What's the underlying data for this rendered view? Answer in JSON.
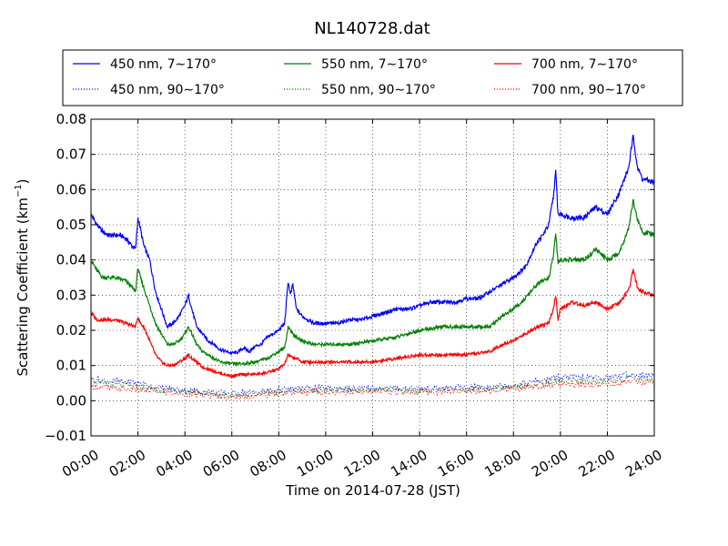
{
  "chart_data": {
    "type": "line",
    "title": "NL140728.dat",
    "xlabel": "Time on 2014-07-28 (JST)",
    "ylabel": "Scattering Coefficient (km",
    "ylabel_superscript": "−1",
    "ylabel_end": ")",
    "xlim": [
      0,
      24
    ],
    "ylim": [
      -0.01,
      0.08
    ],
    "x_ticks": [
      0,
      2,
      4,
      6,
      8,
      10,
      12,
      14,
      16,
      18,
      20,
      22,
      24
    ],
    "x_tick_labels": [
      "00:00",
      "02:00",
      "04:00",
      "06:00",
      "08:00",
      "10:00",
      "12:00",
      "14:00",
      "16:00",
      "18:00",
      "20:00",
      "22:00",
      "24:00"
    ],
    "y_ticks": [
      -0.01,
      0,
      0.01,
      0.02,
      0.03,
      0.04,
      0.05,
      0.06,
      0.07,
      0.08
    ],
    "y_tick_labels": [
      "−0.01",
      "0.00",
      "0.01",
      "0.02",
      "0.03",
      "0.04",
      "0.05",
      "0.06",
      "0.07",
      "0.08"
    ],
    "grid": true,
    "legend_position": "top (above plot)",
    "x_unit": "hours since 00:00 JST",
    "series": [
      {
        "name": "450 nm, 7∼170°",
        "color": "#0000ff",
        "style": "solid",
        "x": [
          0,
          0.25,
          0.5,
          0.75,
          1,
          1.25,
          1.5,
          1.75,
          1.9,
          2.0,
          2.1,
          2.25,
          2.5,
          2.75,
          3,
          3.25,
          3.5,
          3.75,
          4,
          4.15,
          4.3,
          4.5,
          4.75,
          5,
          5.25,
          5.5,
          5.75,
          6,
          6.25,
          6.5,
          6.75,
          7,
          7.25,
          7.5,
          7.75,
          8,
          8.25,
          8.4,
          8.5,
          8.6,
          8.75,
          9,
          9.5,
          10,
          10.5,
          11,
          11.5,
          12,
          12.5,
          13,
          13.5,
          14,
          14.5,
          15,
          15.5,
          16,
          16.5,
          17,
          17.5,
          18,
          18.5,
          19,
          19.25,
          19.5,
          19.7,
          19.8,
          19.9,
          20,
          20.5,
          21,
          21.5,
          22,
          22.5,
          22.9,
          23.1,
          23.3,
          23.5,
          24
        ],
        "y": [
          0.053,
          0.05,
          0.048,
          0.047,
          0.047,
          0.047,
          0.046,
          0.044,
          0.043,
          0.052,
          0.049,
          0.044,
          0.04,
          0.031,
          0.026,
          0.021,
          0.022,
          0.024,
          0.027,
          0.03,
          0.026,
          0.021,
          0.019,
          0.017,
          0.016,
          0.0145,
          0.014,
          0.0135,
          0.0138,
          0.015,
          0.014,
          0.0155,
          0.016,
          0.018,
          0.019,
          0.02,
          0.022,
          0.034,
          0.03,
          0.033,
          0.026,
          0.024,
          0.022,
          0.022,
          0.022,
          0.023,
          0.023,
          0.024,
          0.025,
          0.026,
          0.026,
          0.027,
          0.028,
          0.028,
          0.028,
          0.029,
          0.029,
          0.031,
          0.033,
          0.035,
          0.038,
          0.045,
          0.047,
          0.05,
          0.058,
          0.065,
          0.053,
          0.053,
          0.052,
          0.052,
          0.055,
          0.053,
          0.059,
          0.066,
          0.075,
          0.066,
          0.063,
          0.062
        ]
      },
      {
        "name": "550 nm, 7∼170°",
        "color": "#008000",
        "style": "solid",
        "x": [
          0,
          0.25,
          0.5,
          1,
          1.5,
          1.9,
          2.0,
          2.1,
          2.25,
          2.5,
          2.75,
          3,
          3.25,
          3.5,
          3.75,
          4,
          4.15,
          4.3,
          4.5,
          4.75,
          5,
          5.5,
          6,
          6.5,
          7,
          7.5,
          8,
          8.25,
          8.4,
          8.5,
          8.6,
          8.75,
          9,
          9.5,
          10,
          11,
          12,
          13,
          14,
          15,
          16,
          17,
          17.5,
          18,
          18.5,
          19,
          19.5,
          19.7,
          19.8,
          19.9,
          20,
          20.5,
          21,
          21.5,
          22,
          22.5,
          22.9,
          23.1,
          23.3,
          23.5,
          24
        ],
        "y": [
          0.04,
          0.037,
          0.035,
          0.035,
          0.034,
          0.031,
          0.038,
          0.035,
          0.032,
          0.027,
          0.022,
          0.019,
          0.016,
          0.016,
          0.017,
          0.019,
          0.021,
          0.019,
          0.016,
          0.014,
          0.013,
          0.011,
          0.0105,
          0.0105,
          0.011,
          0.012,
          0.014,
          0.015,
          0.021,
          0.02,
          0.019,
          0.018,
          0.017,
          0.016,
          0.016,
          0.016,
          0.017,
          0.018,
          0.02,
          0.021,
          0.021,
          0.021,
          0.024,
          0.026,
          0.029,
          0.033,
          0.035,
          0.041,
          0.048,
          0.039,
          0.04,
          0.04,
          0.04,
          0.043,
          0.04,
          0.042,
          0.049,
          0.057,
          0.051,
          0.048,
          0.047
        ]
      },
      {
        "name": "700 nm, 7∼170°",
        "color": "#ff0000",
        "style": "solid",
        "x": [
          0,
          0.25,
          0.5,
          1,
          1.5,
          1.9,
          2.0,
          2.1,
          2.25,
          2.5,
          2.75,
          3,
          3.25,
          3.5,
          3.75,
          4,
          4.15,
          4.3,
          4.5,
          4.75,
          5,
          5.5,
          6,
          6.5,
          7,
          7.5,
          8,
          8.25,
          8.4,
          8.5,
          8.75,
          9,
          10,
          11,
          12,
          13,
          14,
          15,
          16,
          17,
          17.5,
          18,
          18.5,
          19,
          19.5,
          19.7,
          19.8,
          19.9,
          20,
          20.5,
          21,
          21.5,
          22,
          22.5,
          22.9,
          23.1,
          23.3,
          23.5,
          24
        ],
        "y": [
          0.025,
          0.023,
          0.023,
          0.023,
          0.022,
          0.021,
          0.024,
          0.022,
          0.021,
          0.017,
          0.013,
          0.011,
          0.01,
          0.01,
          0.011,
          0.012,
          0.013,
          0.012,
          0.011,
          0.0095,
          0.009,
          0.0078,
          0.007,
          0.0075,
          0.0075,
          0.008,
          0.009,
          0.0105,
          0.013,
          0.0125,
          0.012,
          0.011,
          0.011,
          0.011,
          0.011,
          0.012,
          0.013,
          0.013,
          0.013,
          0.014,
          0.016,
          0.017,
          0.019,
          0.021,
          0.022,
          0.026,
          0.03,
          0.023,
          0.026,
          0.028,
          0.027,
          0.028,
          0.026,
          0.028,
          0.031,
          0.037,
          0.032,
          0.031,
          0.03
        ]
      },
      {
        "name": "450 nm, 90∼170°",
        "color": "#0000ff",
        "style": "dotted",
        "x": [
          0,
          1,
          2,
          3,
          4,
          5,
          6,
          7,
          8,
          9,
          10,
          11,
          12,
          13,
          14,
          15,
          16,
          17,
          18,
          19,
          20,
          21,
          22,
          23,
          24
        ],
        "y": [
          0.006,
          0.0055,
          0.005,
          0.0035,
          0.003,
          0.0025,
          0.002,
          0.0025,
          0.003,
          0.0035,
          0.0035,
          0.0035,
          0.0035,
          0.0035,
          0.0035,
          0.0035,
          0.0038,
          0.004,
          0.0045,
          0.0055,
          0.0068,
          0.0065,
          0.0065,
          0.0075,
          0.007
        ]
      },
      {
        "name": "550 nm, 90∼170°",
        "color": "#008000",
        "style": "dotted",
        "x": [
          0,
          1,
          2,
          3,
          4,
          5,
          6,
          7,
          8,
          9,
          10,
          11,
          12,
          13,
          14,
          15,
          16,
          17,
          18,
          19,
          20,
          21,
          22,
          23,
          24
        ],
        "y": [
          0.005,
          0.0045,
          0.004,
          0.003,
          0.0025,
          0.002,
          0.0015,
          0.002,
          0.0025,
          0.003,
          0.003,
          0.003,
          0.003,
          0.003,
          0.003,
          0.003,
          0.0032,
          0.0035,
          0.004,
          0.0045,
          0.0055,
          0.0055,
          0.0055,
          0.0065,
          0.006
        ]
      },
      {
        "name": "700 nm, 90∼170°",
        "color": "#ff0000",
        "style": "dotted",
        "x": [
          0,
          1,
          2,
          3,
          4,
          5,
          6,
          7,
          8,
          9,
          10,
          11,
          12,
          13,
          14,
          15,
          16,
          17,
          18,
          19,
          20,
          21,
          22,
          23,
          24
        ],
        "y": [
          0.004,
          0.0035,
          0.003,
          0.0025,
          0.002,
          0.0015,
          0.001,
          0.0015,
          0.002,
          0.0025,
          0.0025,
          0.0025,
          0.0025,
          0.0025,
          0.0025,
          0.0025,
          0.0028,
          0.003,
          0.0035,
          0.004,
          0.0045,
          0.0045,
          0.0045,
          0.0055,
          0.005
        ]
      }
    ]
  }
}
